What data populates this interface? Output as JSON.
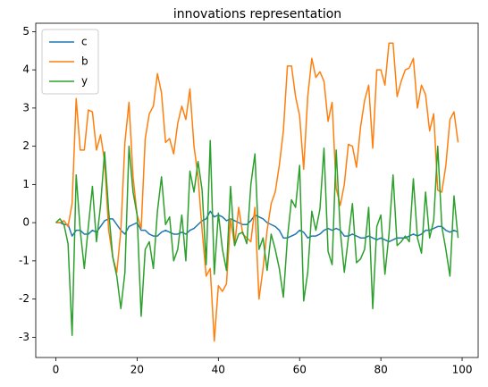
{
  "chart_data": {
    "type": "line",
    "title": "innovations representation",
    "x": [
      0,
      1,
      2,
      3,
      4,
      5,
      6,
      7,
      8,
      9,
      10,
      11,
      12,
      13,
      14,
      15,
      16,
      17,
      18,
      19,
      20,
      21,
      22,
      23,
      24,
      25,
      26,
      27,
      28,
      29,
      30,
      31,
      32,
      33,
      34,
      35,
      36,
      37,
      38,
      39,
      40,
      41,
      42,
      43,
      44,
      45,
      46,
      47,
      48,
      49,
      50,
      51,
      52,
      53,
      54,
      55,
      56,
      57,
      58,
      59,
      60,
      61,
      62,
      63,
      64,
      65,
      66,
      67,
      68,
      69,
      70,
      71,
      72,
      73,
      74,
      75,
      76,
      77,
      78,
      79,
      80,
      81,
      82,
      83,
      84,
      85,
      86,
      87,
      88,
      89,
      90,
      91,
      92,
      93,
      94,
      95,
      96,
      97,
      98,
      99
    ],
    "series": [
      {
        "name": "c",
        "color": "#1f77b4",
        "values": [
          0,
          0,
          -0.05,
          -0.05,
          -0.35,
          -0.2,
          -0.2,
          -0.3,
          -0.3,
          -0.2,
          -0.25,
          -0.1,
          0.05,
          0.1,
          0.1,
          -0.05,
          -0.2,
          -0.3,
          -0.1,
          -0.05,
          0,
          -0.2,
          -0.2,
          -0.3,
          -0.35,
          -0.35,
          -0.25,
          -0.2,
          -0.25,
          -0.3,
          -0.3,
          -0.25,
          -0.3,
          -0.2,
          -0.15,
          -0.05,
          0.05,
          0.1,
          0.3,
          0.15,
          0.2,
          0.15,
          0.05,
          0.1,
          0.05,
          0,
          -0.05,
          -0.05,
          0.05,
          0.2,
          0.15,
          0.1,
          0,
          -0.05,
          -0.1,
          -0.2,
          -0.4,
          -0.4,
          -0.35,
          -0.3,
          -0.2,
          -0.25,
          -0.4,
          -0.35,
          -0.35,
          -0.3,
          -0.2,
          -0.15,
          -0.2,
          -0.15,
          -0.2,
          -0.35,
          -0.35,
          -0.3,
          -0.35,
          -0.4,
          -0.4,
          -0.35,
          -0.4,
          -0.45,
          -0.4,
          -0.45,
          -0.5,
          -0.45,
          -0.4,
          -0.4,
          -0.4,
          -0.35,
          -0.3,
          -0.35,
          -0.3,
          -0.2,
          -0.2,
          -0.15,
          -0.1,
          -0.1,
          -0.2,
          -0.25,
          -0.2,
          -0.25
        ]
      },
      {
        "name": "b",
        "color": "#ff7f0e",
        "values": [
          0,
          0,
          0.05,
          -0.1,
          0.5,
          3.25,
          1.9,
          1.9,
          2.95,
          2.9,
          1.9,
          2.3,
          1.6,
          -0.2,
          -0.9,
          -1.3,
          -0.2,
          2.1,
          3.15,
          1.2,
          0.2,
          -0.15,
          2.2,
          2.85,
          3.05,
          3.9,
          3.4,
          2.1,
          2.2,
          1.8,
          2.6,
          3.05,
          2.7,
          3.5,
          2.0,
          1.2,
          -0.2,
          -1.4,
          -1.2,
          -3.1,
          -1.65,
          -1.8,
          -1.6,
          0.1,
          -0.6,
          0.4,
          -0.3,
          -0.4,
          -0.5,
          0.4,
          -2.0,
          -1.2,
          -0.2,
          0.5,
          0.8,
          1.5,
          2.4,
          4.1,
          4.1,
          3.3,
          2.8,
          1.4,
          3.3,
          4.3,
          3.8,
          3.95,
          3.7,
          2.65,
          3.15,
          0.9,
          0.45,
          1.0,
          2.05,
          2.0,
          1.45,
          2.5,
          3.2,
          3.6,
          1.95,
          4.0,
          4.0,
          3.6,
          4.7,
          4.7,
          3.3,
          3.7,
          4.0,
          4.05,
          4.3,
          3.0,
          3.6,
          3.35,
          2.4,
          2.85,
          0.85,
          0.8,
          1.5,
          2.7,
          2.9,
          2.1
        ]
      },
      {
        "name": "y",
        "color": "#2ca02c",
        "values": [
          0,
          0.1,
          -0.05,
          -0.55,
          -2.95,
          1.25,
          -0.2,
          -1.2,
          -0.1,
          0.95,
          -0.5,
          0.45,
          1.85,
          0.3,
          -0.9,
          -1.4,
          -2.25,
          -1.3,
          2.0,
          0.8,
          0.2,
          -2.45,
          -0.7,
          -0.5,
          -1.2,
          0.3,
          1.2,
          -0.05,
          0.15,
          -1.0,
          -0.7,
          0.2,
          -1.0,
          1.35,
          0.8,
          1.6,
          0.85,
          -1.1,
          2.15,
          -1.35,
          0.25,
          -0.7,
          -1.25,
          0.95,
          -0.6,
          -0.3,
          -0.25,
          -0.55,
          1.0,
          1.8,
          -0.7,
          -0.4,
          -1.25,
          -0.3,
          -0.7,
          -1.2,
          -1.95,
          -0.4,
          0.6,
          0.4,
          1.5,
          -2.05,
          -1.3,
          0.3,
          -0.2,
          0.35,
          1.95,
          -0.75,
          -1.1,
          1.9,
          -0.2,
          -1.3,
          -0.4,
          0.5,
          -1.05,
          -0.95,
          -0.7,
          0.4,
          -2.25,
          -0.1,
          0.2,
          -1.35,
          -0.3,
          1.25,
          -0.6,
          -0.5,
          -0.35,
          -0.5,
          1.15,
          -0.4,
          -0.8,
          0.8,
          -0.4,
          0.05,
          2.0,
          -0.1,
          -0.7,
          -1.4,
          0.7,
          -0.4
        ]
      }
    ],
    "xlim": [
      -4.95,
      103.95
    ],
    "ylim": [
      -3.53,
      5.22
    ],
    "xticks": [
      0,
      20,
      40,
      60,
      80,
      100
    ],
    "yticks": [
      -3,
      -2,
      -1,
      0,
      1,
      2,
      3,
      4,
      5
    ],
    "legend": "upper left"
  }
}
